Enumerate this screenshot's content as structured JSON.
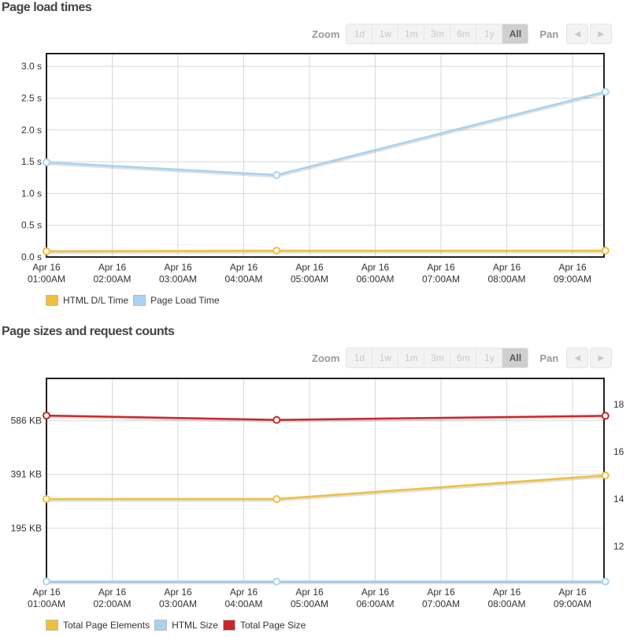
{
  "section1": {
    "title": "Page load times"
  },
  "section2": {
    "title": "Page sizes and request counts"
  },
  "zoom": {
    "label": "Zoom",
    "buttons": [
      "1d",
      "1w",
      "1m",
      "3m",
      "6m",
      "1y",
      "All"
    ],
    "active": "All",
    "pan_label": "Pan",
    "pan_left_icon": "arrow-left-icon",
    "pan_right_icon": "arrow-right-icon"
  },
  "colors": {
    "html_dl": "#f0bf3c",
    "page_load": "#a9d2f0",
    "total_page_size": "#c8282d",
    "grid": "#d8d8d8"
  },
  "chart_data": [
    {
      "type": "line",
      "title": "Page load times",
      "x": [
        "Apr 16 01:00AM",
        "Apr 16 04:30AM",
        "Apr 16 09:30AM"
      ],
      "x_tick_labels": [
        [
          "Apr 16",
          "01:00AM"
        ],
        [
          "Apr 16",
          "02:00AM"
        ],
        [
          "Apr 16",
          "03:00AM"
        ],
        [
          "Apr 16",
          "04:00AM"
        ],
        [
          "Apr 16",
          "05:00AM"
        ],
        [
          "Apr 16",
          "06:00AM"
        ],
        [
          "Apr 16",
          "07:00AM"
        ],
        [
          "Apr 16",
          "08:00AM"
        ],
        [
          "Apr 16",
          "09:00AM"
        ]
      ],
      "y_ticks": [
        "0.0 s",
        "0.5 s",
        "1.0 s",
        "1.5 s",
        "2.0 s",
        "2.5 s",
        "3.0 s"
      ],
      "ylim": [
        0,
        3.2
      ],
      "series": [
        {
          "name": "HTML D/L Time",
          "color": "#f0bf3c",
          "values": [
            0.09,
            0.1,
            0.1
          ]
        },
        {
          "name": "Page Load Time",
          "color": "#a9d2f0",
          "values": [
            1.49,
            1.29,
            2.6
          ]
        }
      ],
      "grid": true,
      "legend": "bottom-left"
    },
    {
      "type": "line",
      "title": "Page sizes and request counts",
      "x": [
        "Apr 16 01:00AM",
        "Apr 16 04:30AM",
        "Apr 16 09:30AM"
      ],
      "x_tick_labels": [
        [
          "Apr 16",
          "01:00AM"
        ],
        [
          "Apr 16",
          "02:00AM"
        ],
        [
          "Apr 16",
          "03:00AM"
        ],
        [
          "Apr 16",
          "04:00AM"
        ],
        [
          "Apr 16",
          "05:00AM"
        ],
        [
          "Apr 16",
          "06:00AM"
        ],
        [
          "Apr 16",
          "07:00AM"
        ],
        [
          "Apr 16",
          "08:00AM"
        ],
        [
          "Apr 16",
          "09:00AM"
        ]
      ],
      "y_left_ticks": [
        "195 KB",
        "391 KB",
        "586 KB"
      ],
      "y_left_range_kb": [
        0,
        740
      ],
      "y_right_ticks": [
        "12",
        "14",
        "16",
        "18"
      ],
      "y_right_range": [
        10.5,
        19.1
      ],
      "series": [
        {
          "name": "Total Page Elements",
          "axis": "right",
          "color": "#f0bf3c",
          "values": [
            14,
            14,
            15
          ]
        },
        {
          "name": "HTML Size",
          "axis": "left",
          "color": "#a9d2f0",
          "values": [
            1,
            1,
            1
          ]
        },
        {
          "name": "Total Page Size",
          "axis": "left",
          "color": "#c8282d",
          "values": [
            605,
            589,
            604
          ]
        }
      ],
      "grid": true,
      "legend": "bottom-left"
    }
  ]
}
